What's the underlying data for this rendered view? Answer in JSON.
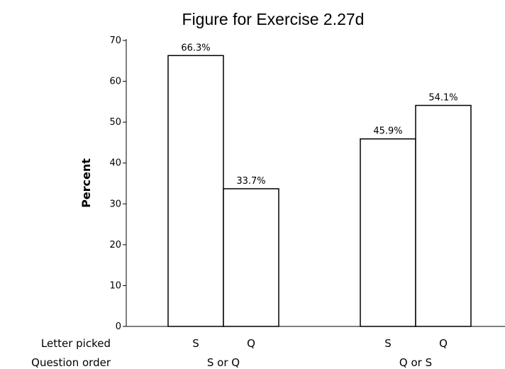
{
  "chart_data": {
    "type": "bar",
    "title": "Figure for Exercise 2.27d",
    "ylabel": "Percent",
    "ylim": [
      0,
      70
    ],
    "yticks": [
      0,
      10,
      20,
      30,
      40,
      50,
      60,
      70
    ],
    "row_labels": {
      "inner": "Letter picked",
      "outer": "Question order"
    },
    "groups": [
      {
        "name": "S or Q",
        "bars": [
          {
            "category": "S",
            "value": 66.3,
            "label": "66.3%"
          },
          {
            "category": "Q",
            "value": 33.7,
            "label": "33.7%"
          }
        ]
      },
      {
        "name": "Q or S",
        "bars": [
          {
            "category": "S",
            "value": 45.9,
            "label": "45.9%"
          },
          {
            "category": "Q",
            "value": 54.1,
            "label": "54.1%"
          }
        ]
      }
    ],
    "grid": false,
    "bar_fill": "#ffffff",
    "bar_stroke": "#000000"
  }
}
